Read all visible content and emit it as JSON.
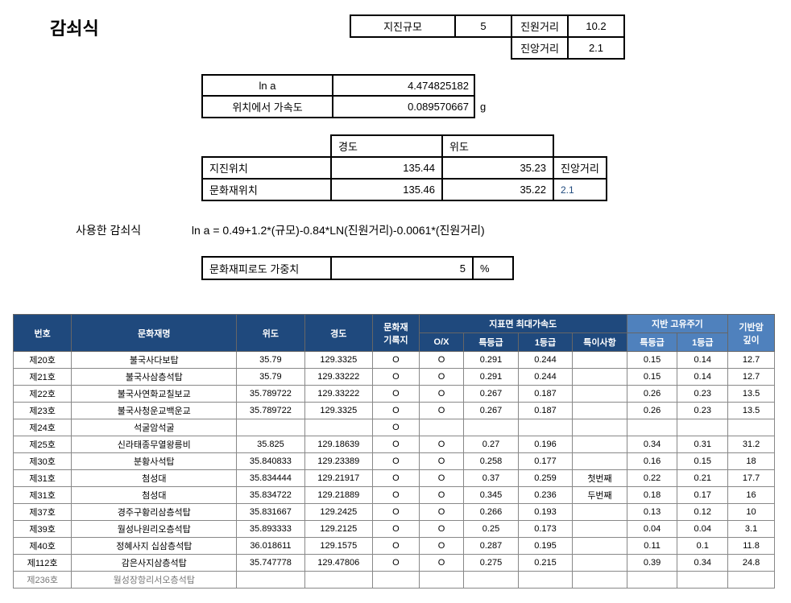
{
  "title": "감쇠식",
  "top": {
    "magnitude_label": "지진규모",
    "magnitude": "5",
    "source_dist_label": "진원거리",
    "source_dist": "10.2",
    "epi_dist_label": "진앙거리",
    "epi_dist": "2.1"
  },
  "calc": {
    "lna_label": "ln a",
    "lna": "4.474825182",
    "accel_label": "위치에서 가속도",
    "accel": "0.089570667",
    "accel_unit": "g"
  },
  "loc": {
    "lon_h": "경도",
    "lat_h": "위도",
    "row1_label": "지진위치",
    "row1_lon": "135.44",
    "row1_lat": "35.23",
    "row1_side": "진앙거리",
    "row2_label": "문화재위치",
    "row2_lon": "135.46",
    "row2_lat": "35.22",
    "row2_side": "2.1"
  },
  "formula": {
    "label": "사용한 감쇠식",
    "text": "ln a = 0.49+1.2*(규모)-0.84*LN(진원거리)-0.0061*(진원거리)"
  },
  "weight": {
    "label": "문화재피로도 가중치",
    "value": "5",
    "unit": "%"
  },
  "table": {
    "headers": {
      "no": "번호",
      "name": "문화재명",
      "lat": "위도",
      "lon": "경도",
      "record": "문화재\n기록지",
      "pga_group": "지표면 최대가속도",
      "ox": "O/X",
      "spec": "특등급",
      "g1": "1등급",
      "special": "특이사항",
      "period_group": "지반 고유주기",
      "p_spec": "특등급",
      "p_g1": "1등급",
      "rock": "기반암\n깊이"
    },
    "rows": [
      {
        "no": "제20호",
        "name": "불국사다보탑",
        "lat": "35.79",
        "lon": "129.3325",
        "rec": "O",
        "ox": "O",
        "s": "0.291",
        "g": "0.244",
        "spec": "",
        "ps": "0.15",
        "pg": "0.14",
        "rock": "12.7"
      },
      {
        "no": "제21호",
        "name": "불국사삼층석탑",
        "lat": "35.79",
        "lon": "129.33222",
        "rec": "O",
        "ox": "O",
        "s": "0.291",
        "g": "0.244",
        "spec": "",
        "ps": "0.15",
        "pg": "0.14",
        "rock": "12.7"
      },
      {
        "no": "제22호",
        "name": "불국사연화교칠보교",
        "lat": "35.789722",
        "lon": "129.33222",
        "rec": "O",
        "ox": "O",
        "s": "0.267",
        "g": "0.187",
        "spec": "",
        "ps": "0.26",
        "pg": "0.23",
        "rock": "13.5"
      },
      {
        "no": "제23호",
        "name": "불국사청운교백운교",
        "lat": "35.789722",
        "lon": "129.3325",
        "rec": "O",
        "ox": "O",
        "s": "0.267",
        "g": "0.187",
        "spec": "",
        "ps": "0.26",
        "pg": "0.23",
        "rock": "13.5"
      },
      {
        "no": "제24호",
        "name": "석굴암석굴",
        "lat": "",
        "lon": "",
        "rec": "O",
        "ox": "",
        "s": "",
        "g": "",
        "spec": "",
        "ps": "",
        "pg": "",
        "rock": ""
      },
      {
        "no": "제25호",
        "name": "신라태종무열왕릉비",
        "lat": "35.825",
        "lon": "129.18639",
        "rec": "O",
        "ox": "O",
        "s": "0.27",
        "g": "0.196",
        "spec": "",
        "ps": "0.34",
        "pg": "0.31",
        "rock": "31.2"
      },
      {
        "no": "제30호",
        "name": "분황사석탑",
        "lat": "35.840833",
        "lon": "129.23389",
        "rec": "O",
        "ox": "O",
        "s": "0.258",
        "g": "0.177",
        "spec": "",
        "ps": "0.16",
        "pg": "0.15",
        "rock": "18"
      },
      {
        "no": "제31호",
        "name": "첨성대",
        "lat": "35.834444",
        "lon": "129.21917",
        "rec": "O",
        "ox": "O",
        "s": "0.37",
        "g": "0.259",
        "spec": "첫번째",
        "ps": "0.22",
        "pg": "0.21",
        "rock": "17.7"
      },
      {
        "no": "제31호",
        "name": "첨성대",
        "lat": "35.834722",
        "lon": "129.21889",
        "rec": "O",
        "ox": "O",
        "s": "0.345",
        "g": "0.236",
        "spec": "두번째",
        "ps": "0.18",
        "pg": "0.17",
        "rock": "16"
      },
      {
        "no": "제37호",
        "name": "경주구황리삼층석탑",
        "lat": "35.831667",
        "lon": "129.2425",
        "rec": "O",
        "ox": "O",
        "s": "0.266",
        "g": "0.193",
        "spec": "",
        "ps": "0.13",
        "pg": "0.12",
        "rock": "10"
      },
      {
        "no": "제39호",
        "name": "월성나원리오층석탑",
        "lat": "35.893333",
        "lon": "129.2125",
        "rec": "O",
        "ox": "O",
        "s": "0.25",
        "g": "0.173",
        "spec": "",
        "ps": "0.04",
        "pg": "0.04",
        "rock": "3.1"
      },
      {
        "no": "제40호",
        "name": "정혜사지 십삼층석탑",
        "lat": "36.018611",
        "lon": "129.1575",
        "rec": "O",
        "ox": "O",
        "s": "0.287",
        "g": "0.195",
        "spec": "",
        "ps": "0.11",
        "pg": "0.1",
        "rock": "11.8"
      },
      {
        "no": "제112호",
        "name": "감은사지삼층석탑",
        "lat": "35.747778",
        "lon": "129.47806",
        "rec": "O",
        "ox": "O",
        "s": "0.275",
        "g": "0.215",
        "spec": "",
        "ps": "0.39",
        "pg": "0.34",
        "rock": "24.8"
      }
    ],
    "cutoff": {
      "no": "제236호",
      "name": "월성장항리서오층석탑"
    }
  }
}
